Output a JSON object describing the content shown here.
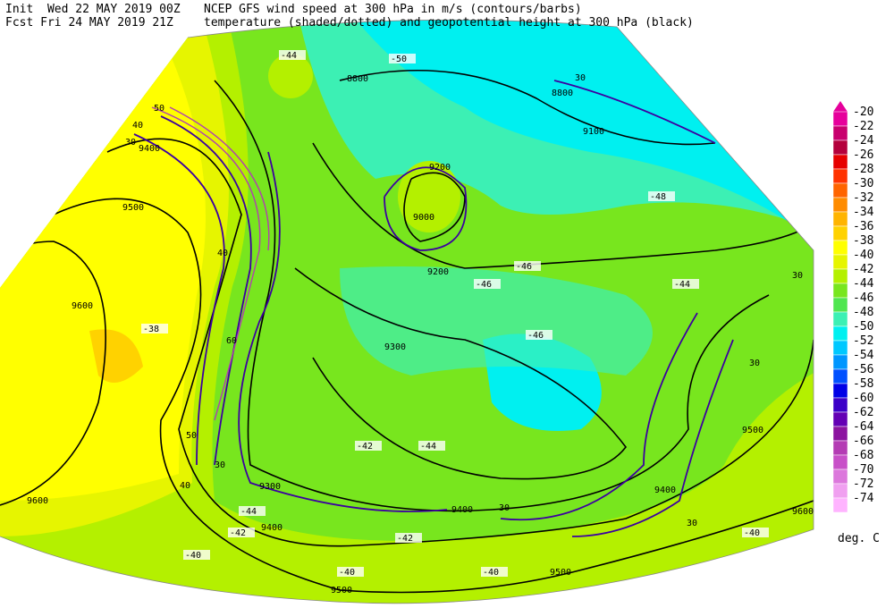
{
  "header": {
    "init": "Init  Wed 22 MAY 2019 00Z",
    "fcst": "Fcst Fri 24 MAY 2019 21Z",
    "line1": "NCEP GFS wind speed at 300 hPa in m/s (contours/barbs)",
    "line2": "temperature (shaded/dotted) and geopotential height at 300 hPa (black)"
  },
  "legend": {
    "unit": "deg. C",
    "levels": [
      -20,
      -22,
      -24,
      -26,
      -28,
      -30,
      -32,
      -34,
      -36,
      -38,
      -40,
      -42,
      -44,
      -46,
      -48,
      -50,
      -52,
      -54,
      -56,
      -58,
      -60,
      -62,
      -64,
      -66,
      -68,
      -70,
      -72,
      -74
    ],
    "colors": [
      "#e6009b",
      "#c8006e",
      "#b4003c",
      "#e60000",
      "#ff3200",
      "#ff6400",
      "#ff8c00",
      "#ffb400",
      "#ffd200",
      "#ffff00",
      "#e6f500",
      "#b4f000",
      "#78e61e",
      "#50e650",
      "#3cf0b4",
      "#00f0f0",
      "#00c8ff",
      "#0096ff",
      "#0050ff",
      "#0000e6",
      "#3c00c8",
      "#6400b4",
      "#8c14a0",
      "#b43cb4",
      "#c850c8",
      "#dc78dc",
      "#f0a0f0",
      "#ffb4ff"
    ]
  },
  "contour_labels": {
    "height": [
      9600,
      9600,
      9500,
      9400,
      9300,
      9300,
      9200,
      9100,
      9000,
      9500,
      9400,
      9400,
      9400,
      9500,
      9500,
      8800,
      8800,
      9600,
      9200
    ],
    "wind": [
      30,
      40,
      50,
      40,
      60,
      50,
      40,
      30,
      30,
      30,
      30,
      30,
      30
    ],
    "temperature": [
      -44,
      -50,
      -48,
      -46,
      -46,
      -46,
      -38,
      -42,
      -44,
      -44,
      -42,
      -42,
      -40,
      -40,
      -40,
      -40,
      -44
    ]
  }
}
